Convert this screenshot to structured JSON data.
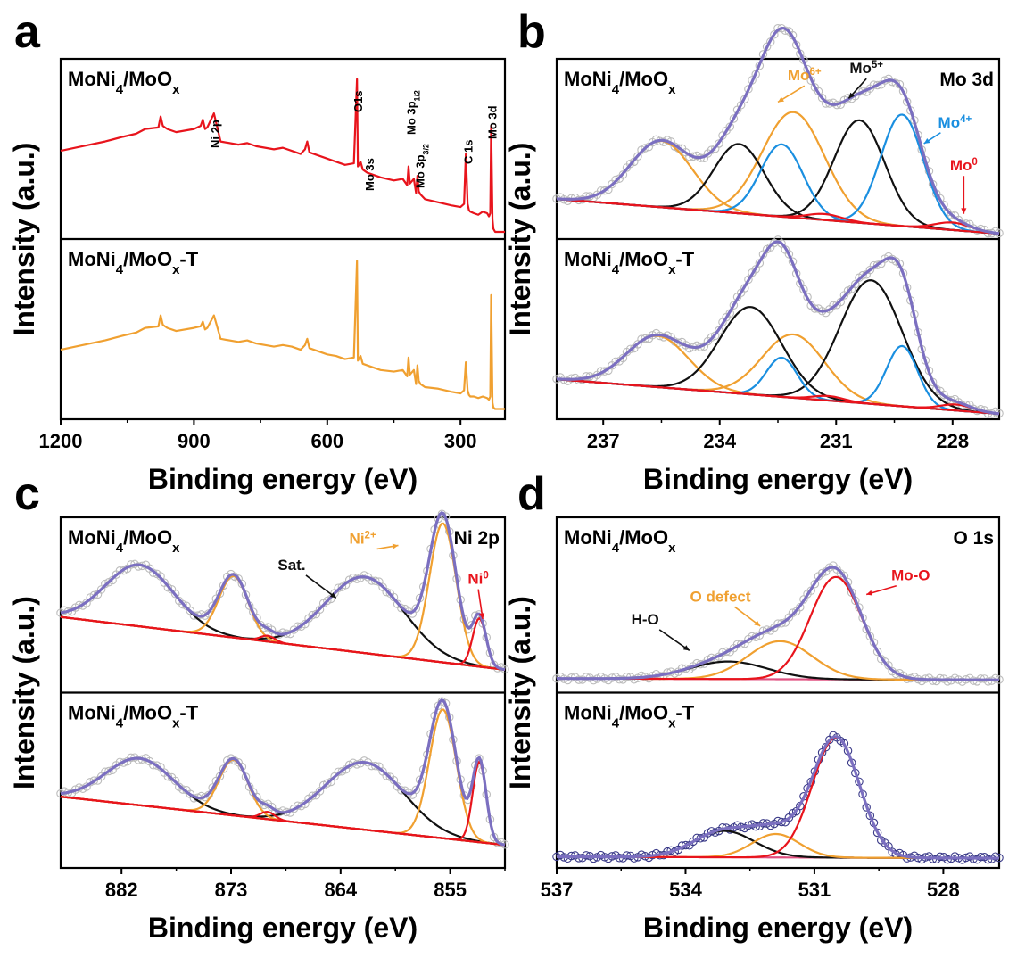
{
  "chart_data": [
    {
      "type": "line",
      "letter": "a",
      "ylabel": "Intensity (a.u.)",
      "xlabel": "Binding energy (eV)",
      "xlim": [
        1200,
        200
      ],
      "xticks": [
        "1200",
        "900",
        "600",
        "300"
      ],
      "xtick_values": [
        1200,
        900,
        600,
        300
      ],
      "panels": [
        {
          "label": "MoNi4/MoOx",
          "label_base": "MoNi",
          "label_sub1": "4",
          "label_mid": "/MoO",
          "label_sub2": "x",
          "label_suffix": "",
          "series": [
            {
              "name": "MoNi4/MoOx survey",
              "color": "#e8141c",
              "x": [
                1200,
                1150,
                1100,
                1060,
                1030,
                1010,
                980,
                975,
                970,
                960,
                940,
                900,
                885,
                880,
                875,
                870,
                855,
                840,
                800,
                780,
                760,
                720,
                700,
                680,
                660,
                650,
                645,
                640,
                620,
                600,
                580,
                560,
                540,
                533,
                531,
                525,
                520,
                510,
                500,
                480,
                450,
                430,
                420,
                417,
                414,
                405,
                400,
                397,
                394,
                390,
                380,
                350,
                320,
                300,
                292,
                288,
                284,
                281,
                278,
                270,
                260,
                250,
                240,
                236,
                233,
                231,
                228,
                226,
                222,
                210,
                200
              ],
              "y": [
                0.52,
                0.55,
                0.58,
                0.61,
                0.63,
                0.66,
                0.67,
                0.74,
                0.68,
                0.66,
                0.64,
                0.66,
                0.68,
                0.72,
                0.66,
                0.67,
                0.76,
                0.58,
                0.56,
                0.57,
                0.55,
                0.53,
                0.54,
                0.52,
                0.5,
                0.53,
                0.58,
                0.51,
                0.49,
                0.47,
                0.45,
                0.43,
                0.44,
                0.98,
                0.42,
                0.45,
                0.4,
                0.38,
                0.37,
                0.35,
                0.33,
                0.34,
                0.3,
                0.42,
                0.31,
                0.34,
                0.25,
                0.36,
                0.26,
                0.24,
                0.21,
                0.19,
                0.17,
                0.16,
                0.18,
                0.5,
                0.18,
                0.14,
                0.13,
                0.12,
                0.11,
                0.13,
                0.12,
                0.1,
                0.12,
                0.68,
                0.08,
                0.02,
                0.0,
                0.0,
                0.0
              ]
            },
            {
              "name": "MoNi4/MoOx-T survey",
              "color": "#f0a030",
              "x": [
                1200,
                1150,
                1100,
                1060,
                1030,
                1010,
                980,
                975,
                970,
                960,
                940,
                900,
                885,
                880,
                875,
                870,
                855,
                840,
                800,
                780,
                760,
                720,
                700,
                680,
                660,
                650,
                645,
                640,
                620,
                600,
                580,
                560,
                540,
                533,
                531,
                525,
                520,
                510,
                500,
                480,
                450,
                430,
                420,
                417,
                414,
                405,
                400,
                397,
                394,
                390,
                380,
                350,
                320,
                300,
                292,
                288,
                284,
                281,
                278,
                270,
                260,
                250,
                240,
                236,
                233,
                231,
                228,
                226,
                222,
                210,
                200
              ],
              "y": [
                0.4,
                0.43,
                0.46,
                0.49,
                0.51,
                0.54,
                0.55,
                0.62,
                0.56,
                0.54,
                0.52,
                0.54,
                0.55,
                0.58,
                0.53,
                0.54,
                0.62,
                0.47,
                0.45,
                0.46,
                0.44,
                0.42,
                0.43,
                0.42,
                0.4,
                0.43,
                0.47,
                0.41,
                0.39,
                0.37,
                0.36,
                0.34,
                0.35,
                0.97,
                0.33,
                0.36,
                0.31,
                0.3,
                0.29,
                0.27,
                0.26,
                0.27,
                0.23,
                0.35,
                0.24,
                0.27,
                0.18,
                0.3,
                0.2,
                0.18,
                0.16,
                0.15,
                0.13,
                0.12,
                0.14,
                0.32,
                0.14,
                0.11,
                0.1,
                0.1,
                0.09,
                0.1,
                0.09,
                0.08,
                0.1,
                0.75,
                0.06,
                0.03,
                0.02,
                0.02,
                0.02
              ]
            }
          ],
          "annotations": [
            {
              "text": "O1s",
              "x": 533
            },
            {
              "text": "Mo 3s",
              "x": 507
            },
            {
              "text": "Ni 2p",
              "x": 855
            },
            {
              "text": "Mo 3p",
              "sub": "1/2",
              "x": 414
            },
            {
              "text": "Mo 3p",
              "sub": "3/2",
              "x": 394
            },
            {
              "text": "C 1s",
              "x": 285
            },
            {
              "text": "Mo 3d",
              "x": 231
            }
          ]
        },
        {
          "label": "MoNi4/MoOx-T",
          "label_base": "MoNi",
          "label_sub1": "4",
          "label_mid": "/MoO",
          "label_sub2": "x",
          "label_suffix": "-T",
          "series": []
        }
      ]
    },
    {
      "type": "line",
      "letter": "b",
      "ylabel": "Intensity (a.u.)",
      "xlabel": "Binding energy (eV)",
      "xlim": [
        238.2,
        226.8
      ],
      "xticks": [
        "237",
        "234",
        "231",
        "228"
      ],
      "xtick_values": [
        237,
        234,
        231,
        228
      ],
      "corner_label": "Mo 3d",
      "panels": [
        {
          "label": "MoNi4/MoOx",
          "label_base": "MoNi",
          "label_sub1": "4",
          "label_mid": "/MoO",
          "label_sub2": "x",
          "label_suffix": "",
          "baseline": {
            "start": 0.23,
            "end": 0.0
          },
          "peaks": [
            {
              "name": "Mo6+ 3d3/2",
              "center": 235.5,
              "height": 0.44,
              "width": 0.8,
              "color": "#f0a030"
            },
            {
              "name": "Mo6+ 3d5/2",
              "center": 232.1,
              "height": 0.7,
              "width": 0.8,
              "color": "#f0a030"
            },
            {
              "name": "Mo5+ 3d3/2",
              "center": 233.5,
              "height": 0.46,
              "width": 0.65,
              "color": "#111111"
            },
            {
              "name": "Mo5+ 3d5/2",
              "center": 230.4,
              "height": 0.68,
              "width": 0.65,
              "color": "#111111"
            },
            {
              "name": "Mo4+ 3d3/2",
              "center": 232.4,
              "height": 0.48,
              "width": 0.55,
              "color": "#1a8fe0"
            },
            {
              "name": "Mo4+ 3d5/2",
              "center": 229.3,
              "height": 0.74,
              "width": 0.55,
              "color": "#1a8fe0"
            },
            {
              "name": "Mo0 3d3/2",
              "center": 231.3,
              "height": 0.04,
              "width": 0.45,
              "color": "#e8141c"
            },
            {
              "name": "Mo0 3d5/2",
              "center": 228.0,
              "height": 0.05,
              "width": 0.45,
              "color": "#e8141c"
            }
          ],
          "annotations": [
            {
              "text": "Mo",
              "sup": "6+",
              "color": "#f0a030"
            },
            {
              "text": "Mo",
              "sup": "5+",
              "color": "#111111"
            },
            {
              "text": "Mo",
              "sup": "4+",
              "color": "#1a8fe0"
            },
            {
              "text": "Mo",
              "sup": "0",
              "color": "#e8141c"
            }
          ]
        },
        {
          "label": "MoNi4/MoOx-T",
          "label_base": "MoNi",
          "label_sub1": "4",
          "label_mid": "/MoO",
          "label_sub2": "x",
          "label_suffix": "-T",
          "baseline": {
            "start": 0.23,
            "end": 0.0
          },
          "peaks": [
            {
              "name": "Mo6+ 3d3/2",
              "center": 235.6,
              "height": 0.34,
              "width": 0.8,
              "color": "#f0a030"
            },
            {
              "name": "Mo6+ 3d5/2",
              "center": 232.1,
              "height": 0.42,
              "width": 0.8,
              "color": "#f0a030"
            },
            {
              "name": "Mo5+ 3d3/2",
              "center": 233.2,
              "height": 0.58,
              "width": 0.8,
              "color": "#111111"
            },
            {
              "name": "Mo5+ 3d5/2",
              "center": 230.1,
              "height": 0.82,
              "width": 0.8,
              "color": "#111111"
            },
            {
              "name": "Mo4+ 3d3/2",
              "center": 232.4,
              "height": 0.26,
              "width": 0.4,
              "color": "#1a8fe0"
            },
            {
              "name": "Mo4+ 3d5/2",
              "center": 229.3,
              "height": 0.4,
              "width": 0.4,
              "color": "#1a8fe0"
            },
            {
              "name": "Mo0 3d3/2",
              "center": 231.2,
              "height": 0.03,
              "width": 0.4,
              "color": "#e8141c"
            },
            {
              "name": "Mo0 3d5/2",
              "center": 227.9,
              "height": 0.04,
              "width": 0.4,
              "color": "#e8141c"
            }
          ],
          "annotations": []
        }
      ]
    },
    {
      "type": "line",
      "letter": "c",
      "ylabel": "Intensity (a.u.)",
      "xlabel": "Binding energy (eV)",
      "xlim": [
        887,
        850.5
      ],
      "xticks": [
        "882",
        "873",
        "864",
        "855"
      ],
      "xtick_values": [
        882,
        873,
        864,
        855
      ],
      "corner_label": "Ni 2p",
      "panels": [
        {
          "label": "MoNi4/MoOx",
          "label_base": "MoNi",
          "label_sub1": "4",
          "label_mid": "/MoO",
          "label_sub2": "x",
          "label_suffix": "",
          "baseline": {
            "start": 0.48,
            "end": 0.12
          },
          "peaks": [
            {
              "name": "Sat. 2p1/2",
              "center": 880.5,
              "height": 0.42,
              "width": 2.8,
              "color": "#111111"
            },
            {
              "name": "Sat. 2p3/2",
              "center": 862.0,
              "height": 0.52,
              "width": 3.2,
              "color": "#111111"
            },
            {
              "name": "Ni2+ 2p1/2",
              "center": 872.8,
              "height": 0.42,
              "width": 1.2,
              "color": "#f0a030"
            },
            {
              "name": "Ni2+ 2p3/2",
              "center": 855.6,
              "height": 0.95,
              "width": 1.1,
              "color": "#f0a030"
            },
            {
              "name": "Ni0 2p1/2",
              "center": 870.0,
              "height": 0.04,
              "width": 0.6,
              "color": "#e8141c"
            },
            {
              "name": "Ni0 2p3/2",
              "center": 852.6,
              "height": 0.33,
              "width": 0.55,
              "color": "#e8141c"
            }
          ],
          "annotations": [
            {
              "text": "Sat.",
              "color": "#111111"
            },
            {
              "text": "Ni",
              "sup": "2+",
              "color": "#f0a030"
            },
            {
              "text": "Ni",
              "sup": "0",
              "color": "#e8141c"
            }
          ]
        },
        {
          "label": "MoNi4/MoOx-T",
          "label_base": "MoNi",
          "label_sub1": "4",
          "label_mid": "/MoO",
          "label_sub2": "x",
          "label_suffix": "-T",
          "baseline": {
            "start": 0.45,
            "end": 0.12
          },
          "peaks": [
            {
              "name": "Sat. 2p1/2",
              "center": 880.5,
              "height": 0.32,
              "width": 2.8,
              "color": "#111111"
            },
            {
              "name": "Sat. 2p3/2",
              "center": 862.0,
              "height": 0.46,
              "width": 3.2,
              "color": "#111111"
            },
            {
              "name": "Ni2+ 2p1/2",
              "center": 872.8,
              "height": 0.38,
              "width": 1.2,
              "color": "#f0a030"
            },
            {
              "name": "Ni2+ 2p3/2",
              "center": 855.6,
              "height": 0.88,
              "width": 1.1,
              "color": "#f0a030"
            },
            {
              "name": "Ni0 2p1/2",
              "center": 870.0,
              "height": 0.05,
              "width": 0.6,
              "color": "#e8141c"
            },
            {
              "name": "Ni0 2p3/2",
              "center": 852.6,
              "height": 0.55,
              "width": 0.55,
              "color": "#e8141c"
            }
          ],
          "annotations": []
        }
      ]
    },
    {
      "type": "line",
      "letter": "d",
      "ylabel": "Intensity (a.u.)",
      "xlabel": "Binding energy (eV)",
      "xlim": [
        537,
        526.7
      ],
      "xticks": [
        "537",
        "534",
        "531",
        "528"
      ],
      "xtick_values": [
        537,
        534,
        531,
        528
      ],
      "corner_label": "O 1s",
      "panels": [
        {
          "label": "MoNi4/MoOx",
          "label_base": "MoNi",
          "label_sub1": "4",
          "label_mid": "/MoO",
          "label_sub2": "x",
          "label_suffix": "",
          "baseline": {
            "start": 0.06,
            "end": 0.05
          },
          "peaks": [
            {
              "name": "H-O",
              "center": 533.0,
              "height": 0.12,
              "width": 0.9,
              "color": "#111111"
            },
            {
              "name": "O defect",
              "center": 531.8,
              "height": 0.26,
              "width": 0.75,
              "color": "#f0a030"
            },
            {
              "name": "Mo-O",
              "center": 530.5,
              "height": 0.7,
              "width": 0.6,
              "color": "#e8141c"
            }
          ],
          "annotations": [
            {
              "text": "H-O",
              "color": "#111111"
            },
            {
              "text": "O defect",
              "color": "#f0a030"
            },
            {
              "text": "Mo-O",
              "color": "#e8141c"
            }
          ]
        },
        {
          "label": "MoNi4/MoOx-T",
          "label_base": "MoNi",
          "label_sub1": "4",
          "label_mid": "/MoO",
          "label_sub2": "x",
          "label_suffix": "-T",
          "baseline": {
            "start": 0.04,
            "end": 0.03
          },
          "peaks": [
            {
              "name": "H-O",
              "center": 533.1,
              "height": 0.18,
              "width": 0.7,
              "color": "#111111"
            },
            {
              "name": "O defect",
              "center": 531.9,
              "height": 0.16,
              "width": 0.55,
              "color": "#f0a030"
            },
            {
              "name": "Mo-O",
              "center": 530.5,
              "height": 0.82,
              "width": 0.55,
              "color": "#e8141c"
            }
          ],
          "annotations": []
        }
      ]
    }
  ]
}
